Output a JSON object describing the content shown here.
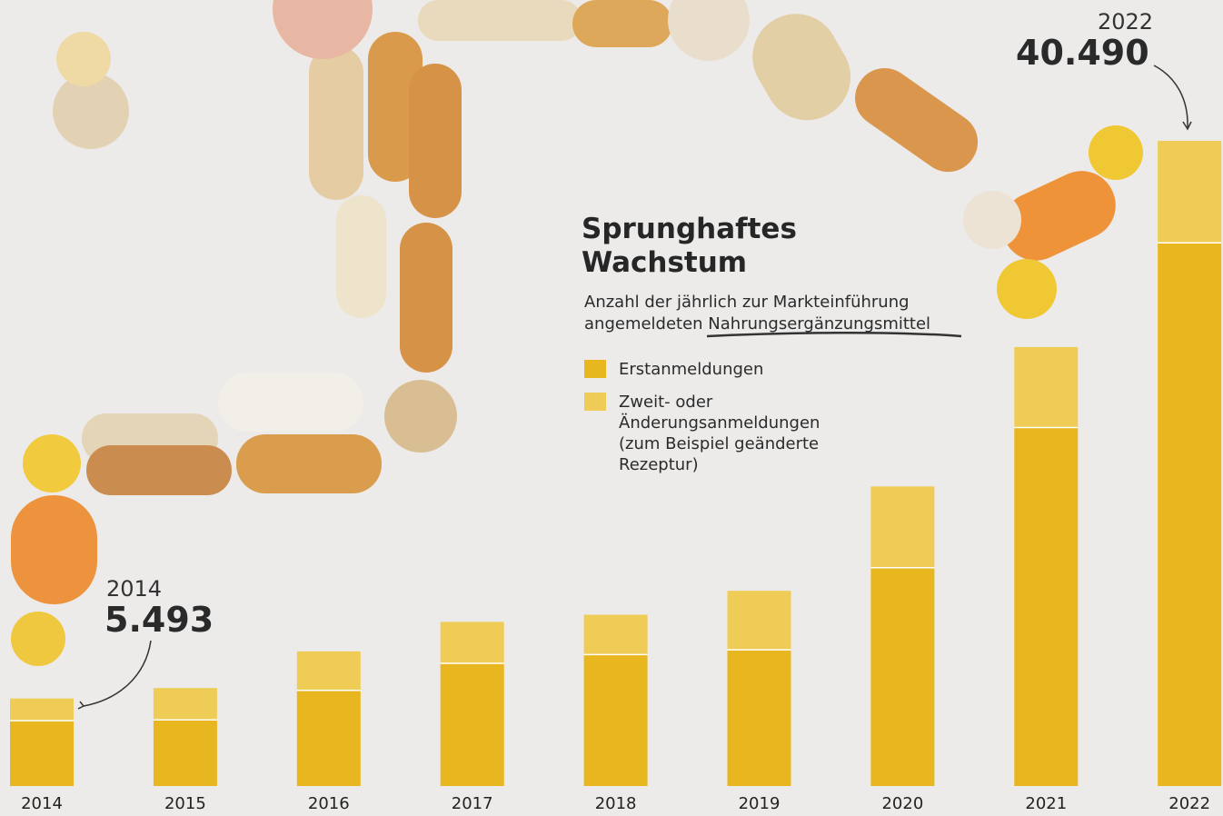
{
  "chart_data": {
    "type": "bar",
    "stacked": true,
    "title": "Sprunghaftes Wachstum",
    "subtitle": "Anzahl der jährlich zur Markteinführung angemeldeten Nahrungsergänzungsmittel",
    "categories": [
      "2014",
      "2015",
      "2016",
      "2017",
      "2018",
      "2019",
      "2020",
      "2021",
      "2022"
    ],
    "series": [
      {
        "name": "Erstanmeldungen",
        "color": "#e8b61e",
        "values": [
          4100,
          4150,
          6000,
          7700,
          8250,
          8550,
          13700,
          22500,
          34090
        ]
      },
      {
        "name": "Zweit- oder Änderungsanmeldungen (zum Beispiel geänderte Rezeptur)",
        "color": "#efcc55",
        "values": [
          1393,
          2000,
          2450,
          2600,
          2500,
          3700,
          5100,
          5050,
          6400
        ]
      }
    ],
    "annotations": [
      {
        "year": "2014",
        "text": "5.493"
      },
      {
        "year": "2022",
        "text": "40.490"
      }
    ]
  }
}
